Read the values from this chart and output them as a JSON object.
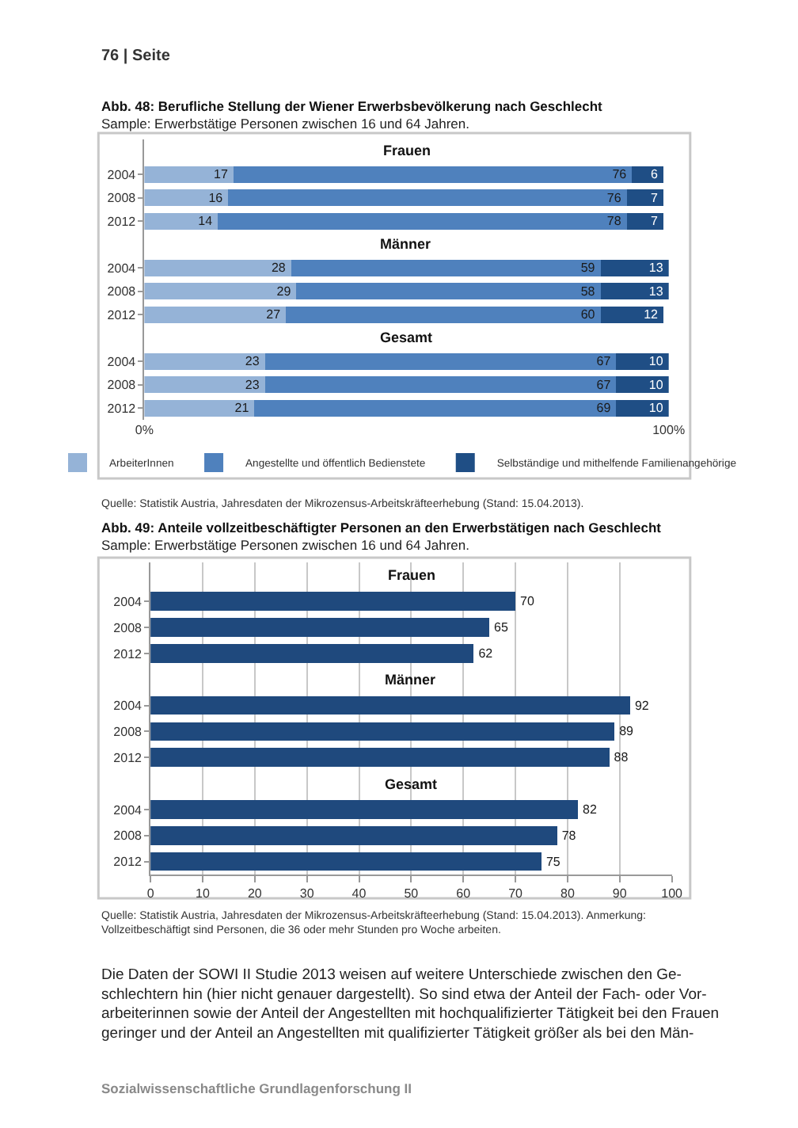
{
  "chart_data": [
    {
      "type": "bar",
      "orientation": "horizontal",
      "stacked": true,
      "data_labels": true,
      "grid": false,
      "legend": "bottom",
      "title": "Abb. 48: Berufliche Stellung der Wiener Erwerbsbevölkerung nach Geschlecht",
      "subtitle": "Sample: Erwerbstätige Personen zwischen 16 und 64 Jahren.",
      "categories": [
        null,
        "2004",
        "2008",
        "2012",
        null,
        "2004",
        "2008",
        "2012",
        null,
        "2004",
        "2008",
        "2012"
      ],
      "series": [
        {
          "name": "ArbeiterInnen",
          "color": "#95b3d7",
          "values": [
            null,
            17,
            16,
            14,
            null,
            28,
            29,
            27,
            null,
            23,
            23,
            21
          ]
        },
        {
          "name": "Angestellte und öffentlich Bedienstete",
          "color": "#4f81bd",
          "values": [
            null,
            76,
            76,
            78,
            null,
            59,
            58,
            60,
            null,
            67,
            67,
            69
          ]
        },
        {
          "name": "Selbständige und mithelfende Familienangehörige",
          "color": "#1f4e85",
          "values": [
            null,
            6,
            7,
            7,
            null,
            13,
            13,
            12,
            null,
            10,
            10,
            10
          ]
        }
      ],
      "xlim": [
        0,
        100
      ],
      "xticks": [
        {
          "value": 0,
          "label": "0%"
        },
        {
          "value": 100,
          "label": "100%"
        }
      ],
      "annotations": [
        "Frauen",
        "Männer",
        "Gesamt",
        "76 | Seite",
        "Quelle: Statistik Austria, Jahresdaten der Mikrozensus-Arbeitskräfteerhebung (Stand: 15.04.2013)."
      ]
    },
    {
      "type": "bar",
      "orientation": "horizontal",
      "data_labels": true,
      "grid": "x",
      "title": "Abb. 49: Anteile vollzeitbeschäftigter Personen an den Erwerbstätigen nach Geschlecht",
      "subtitle": "Sample: Erwerbstätige Personen zwischen 16 und 64 Jahren.",
      "categories": [
        null,
        "2004",
        "2008",
        "2012",
        null,
        "2004",
        "2008",
        "2012",
        null,
        "2004",
        "2008",
        "2012"
      ],
      "series": [
        {
          "color": "#1f497d",
          "values": [
            null,
            70,
            65,
            62,
            null,
            92,
            89,
            88,
            null,
            82,
            78,
            75
          ]
        }
      ],
      "xlim": [
        0,
        100
      ],
      "xticks": [
        0,
        10,
        20,
        30,
        40,
        50,
        60,
        70,
        80,
        90,
        100
      ],
      "annotations": [
        "Frauen",
        "Männer",
        "Gesamt",
        "Quelle: Statistik Austria, Jahresdaten der Mikrozensus-Arbeitskräfteerhebung (Stand: 15.04.2013). Anmerkung:\nVollzeitbeschäftigt sind Personen, die 36 oder mehr Stunden pro Woche arbeiten.",
        "Die Daten der SOWI II Studie 2013 weisen auf weitere Unterschiede zwischen den Ge-\nschlechtern hin (hier nicht genauer dargestellt). So sind etwa der Anteil der Fach- oder Vor-\narbeiterinnen sowie der Anteil der Angestellten mit hochqualifizierter Tätigkeit bei den Frauen\ngeringer und der Anteil an Angestellten mit qualifizierter Tätigkeit größer als bei den Män-",
        "Sozialwissenschaftliche Grundlagenforschung II"
      ]
    }
  ]
}
